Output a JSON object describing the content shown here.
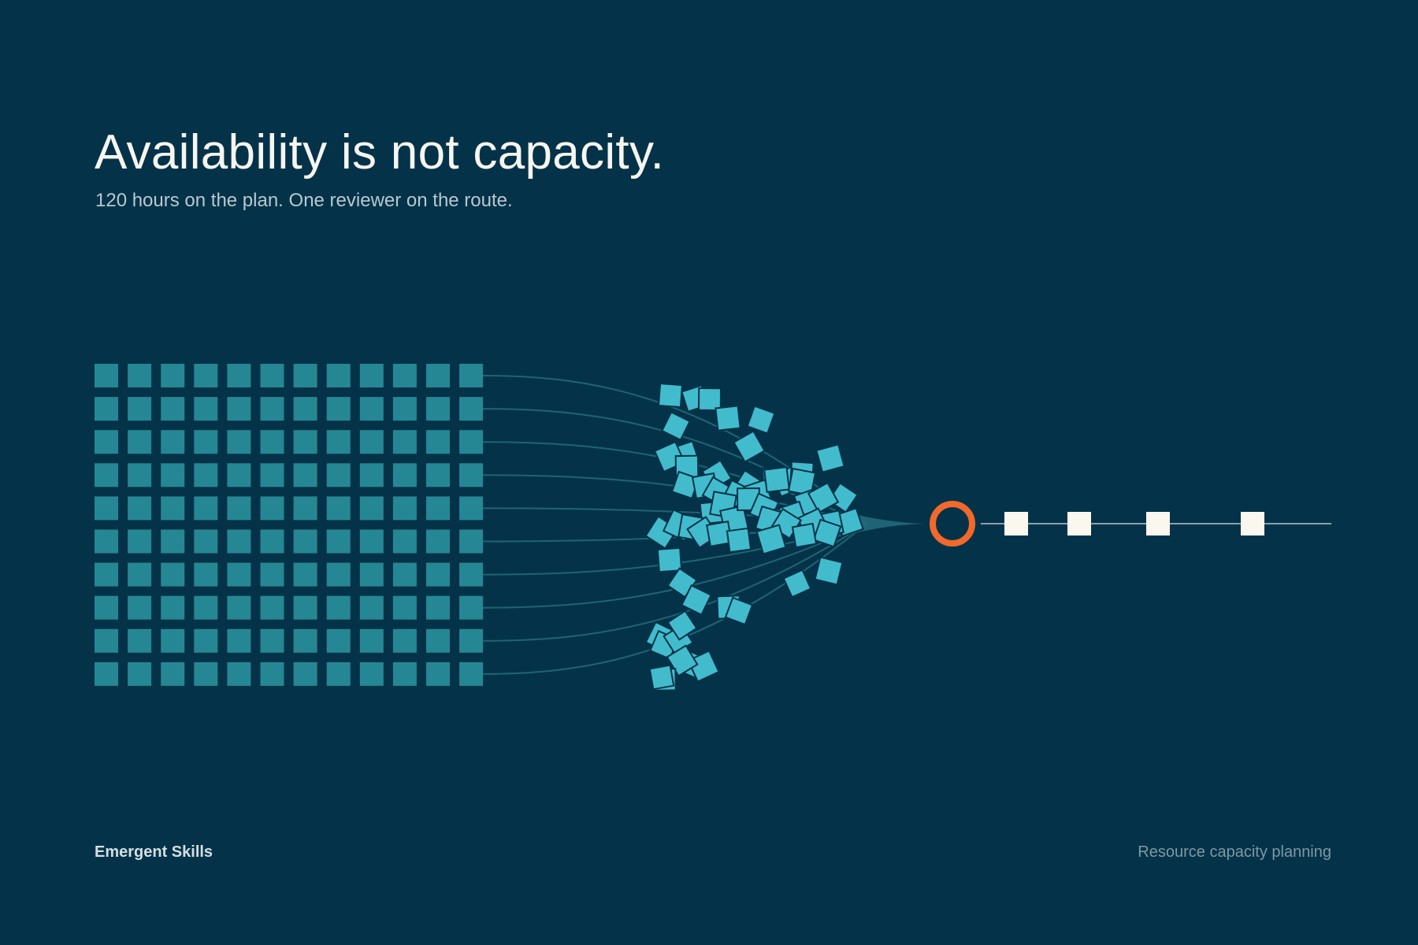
{
  "title": "Availability is not capacity.",
  "subtitle": "120 hours on the plan. One reviewer on the route.",
  "footer": {
    "brand": "Emergent Skills",
    "caption": "Resource capacity planning"
  },
  "diagram": {
    "planned_hours": 120,
    "grid": {
      "columns": 12,
      "rows": 10
    },
    "reviewers": 1,
    "completed_items": 4
  },
  "colors": {
    "background": "#043349",
    "grid_square": "#268794",
    "scatter_square": "#42BCCD",
    "flow_line": "#22697A",
    "reviewer_ring": "#F2692B",
    "output_square": "#FAF7EF",
    "output_line": "#8AA0AA"
  }
}
